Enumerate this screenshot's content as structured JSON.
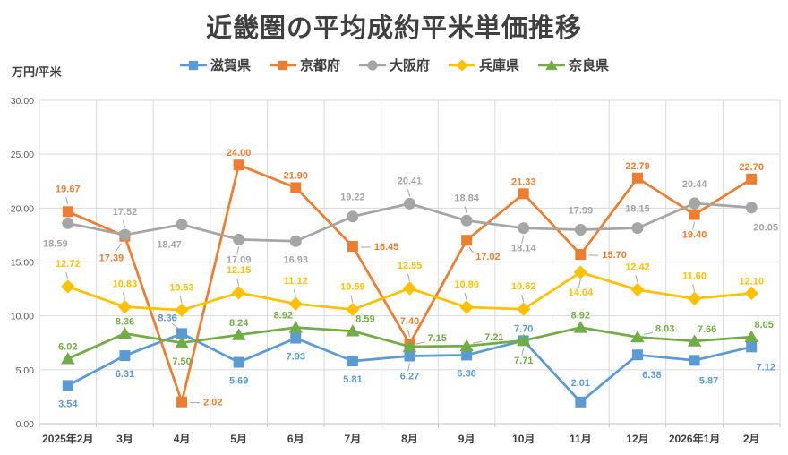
{
  "title": "近畿圏の平均成約平米単価推移",
  "y_axis_unit": "万円/平米",
  "chart_data": {
    "type": "line",
    "title": "近畿圏の平均成約平米単価推移",
    "ylabel": "万円/平米",
    "xlabel": "",
    "ylim": [
      0,
      30
    ],
    "y_tick_step": 5,
    "y_tick_labels": [
      "0.00",
      "5.00",
      "10.00",
      "15.00",
      "20.00",
      "25.00",
      "30.00"
    ],
    "grid": true,
    "legend_position": "top",
    "categories": [
      "2025年2月",
      "3月",
      "4月",
      "5月",
      "6月",
      "7月",
      "8月",
      "9月",
      "10月",
      "11月",
      "12月",
      "2026年1月",
      "2月"
    ],
    "series": [
      {
        "name": "滋賀県",
        "color": "#5B9BD5",
        "marker": "square",
        "values": [
          3.54,
          6.31,
          8.36,
          5.69,
          7.93,
          5.81,
          6.27,
          6.36,
          7.7,
          2.01,
          6.38,
          5.87,
          7.12
        ],
        "label_pos": [
          "b",
          "b",
          "al+",
          "b",
          "b",
          "b",
          "b+",
          "b",
          "a",
          "aa",
          "br",
          "br",
          "br"
        ]
      },
      {
        "name": "京都府",
        "color": "#ED7D31",
        "marker": "square",
        "values": [
          19.67,
          17.39,
          2.02,
          24.0,
          21.9,
          16.45,
          7.4,
          17.02,
          21.33,
          15.7,
          22.79,
          19.4,
          22.7
        ],
        "label_pos": [
          "a+",
          "bl+",
          "r+",
          "a",
          "a",
          "r+",
          "a+",
          "br+",
          "a",
          "r+",
          "a",
          "b+",
          "a"
        ]
      },
      {
        "name": "大阪府",
        "color": "#A5A5A5",
        "marker": "circle",
        "values": [
          18.59,
          17.52,
          18.47,
          17.09,
          16.93,
          19.22,
          20.41,
          18.84,
          18.14,
          17.99,
          18.15,
          20.44,
          20.05
        ],
        "label_pos": [
          "bl",
          "a+",
          "bl",
          "b+",
          "b",
          "aa",
          "a+",
          "a+",
          "b+",
          "aa",
          "aa",
          "aa",
          "br"
        ]
      },
      {
        "name": "兵庫県",
        "color": "#FFC000",
        "marker": "diamond",
        "values": [
          12.72,
          10.83,
          10.53,
          12.15,
          11.12,
          10.59,
          12.55,
          10.8,
          10.62,
          14.04,
          12.42,
          11.6,
          12.1
        ],
        "label_pos": [
          "a+",
          "a+",
          "a+",
          "a+",
          "a+",
          "a+",
          "a+",
          "a+",
          "a+",
          "b+",
          "a+",
          "a+",
          "a"
        ]
      },
      {
        "name": "奈良県",
        "color": "#70AD47",
        "marker": "triangle",
        "values": [
          6.02,
          8.36,
          7.5,
          8.24,
          8.92,
          8.59,
          7.15,
          7.21,
          7.71,
          8.92,
          8.03,
          7.66,
          8.05
        ],
        "label_pos": [
          "a",
          "a",
          "b",
          "a",
          "al",
          "ar",
          "ar+",
          "ar+",
          "b+",
          "a",
          "ar+",
          "ar",
          "ar"
        ]
      }
    ]
  },
  "colors": {
    "grid": "#D9D9D9",
    "axis": "#BFBFBF",
    "tick_text": "#595959",
    "category_text": "#404040",
    "title_text": "#404040",
    "leader": "#A6A6A6",
    "background": "#FFFFFF"
  }
}
